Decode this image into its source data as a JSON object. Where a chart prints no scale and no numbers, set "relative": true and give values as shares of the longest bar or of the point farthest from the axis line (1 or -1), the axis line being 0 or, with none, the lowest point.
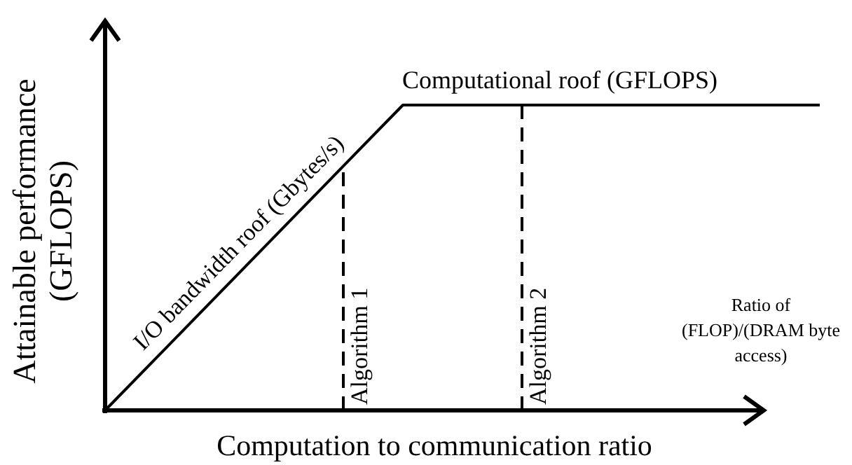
{
  "chart_data": {
    "type": "line",
    "relative": true,
    "xlabel": "Computation to communication ratio",
    "ylabel": "Attainable performance\n(GFLOPS)",
    "marker": "none",
    "line_style": "solid",
    "categories": [
      null,
      null,
      null,
      null,
      null,
      null,
      null,
      null,
      null,
      null,
      null,
      null,
      null
    ],
    "series": [
      {
        "color": "#000000",
        "values": [
          0,
          0.2,
          0.4,
          0.6,
          0.8,
          1,
          1,
          1,
          1,
          1,
          1,
          1,
          1
        ]
      }
    ],
    "annotations": [
      "I/O bandwidth roof (Gbytes/s)",
      "Computational roof (GFLOPS)",
      "Ratio of\n(FLOP)/(DRAM byte\naccess)",
      "Algorithm 1",
      "Algorithm 2"
    ]
  }
}
